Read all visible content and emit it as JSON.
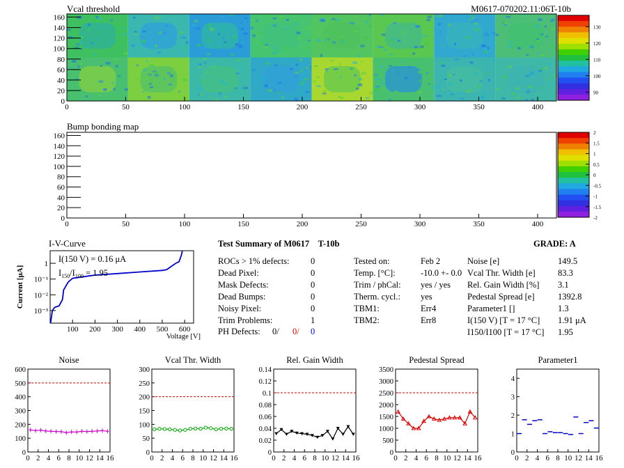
{
  "vcal_map": {
    "title": "Vcal threshold",
    "module_label": "M0617-070202.11:06T-10b",
    "x_ticks": [
      0,
      50,
      100,
      150,
      200,
      250,
      300,
      350,
      400
    ],
    "y_ticks": [
      0,
      20,
      40,
      60,
      80,
      100,
      120,
      140,
      160
    ],
    "palette_ticks": [
      90,
      100,
      110,
      120,
      130
    ]
  },
  "bump_map": {
    "title": "Bump bonding map",
    "x_ticks": [
      0,
      50,
      100,
      150,
      200,
      250,
      300,
      350,
      400
    ],
    "y_ticks": [
      0,
      20,
      40,
      60,
      80,
      100,
      120,
      140,
      160
    ],
    "palette_ticks": [
      "-2",
      "-1.5",
      "-1",
      "-0.5",
      "0",
      "0.5",
      "1",
      "1.5",
      "2"
    ]
  },
  "iv_curve": {
    "title": "I-V-Curve",
    "ylabel": "Current [μA]",
    "xlabel": "Voltage [V]",
    "note_current": "I(150 V) = 0.16 μA",
    "note_ratio": "I150/I100 = 1.95",
    "x_ticks": [
      100,
      200,
      300,
      400,
      500,
      600
    ],
    "y_ticks": [
      "1",
      "10⁻¹",
      "10⁻²",
      "10⁻³"
    ]
  },
  "summary": {
    "title": "Test Summary of M0617",
    "tag": "T-10b",
    "grade": "GRADE:  A",
    "defects": [
      {
        "label": "ROCs > 1% defects:",
        "value": "0"
      },
      {
        "label": "Dead Pixel:",
        "value": "0"
      },
      {
        "label": "Mask Defects:",
        "value": "0"
      },
      {
        "label": "Dead Bumps:",
        "value": "0"
      },
      {
        "label": "Noisy Pixel:",
        "value": "0"
      },
      {
        "label": "Trim Problems:",
        "value": "1"
      }
    ],
    "ph_label": "PH Defects:",
    "ph_values": [
      "0/",
      "0/",
      "0"
    ],
    "ph_colors": [
      "#000000",
      "#e00000",
      "#0000dd"
    ],
    "conditions": [
      {
        "label": "Tested on:",
        "value": "Feb 2"
      },
      {
        "label": "Temp. [°C]:",
        "value": "-10.0 +- 0.0"
      },
      {
        "label": "Trim / phCal:",
        "value": "yes / yes"
      },
      {
        "label": "Therm. cycl.:",
        "value": "yes"
      },
      {
        "label": "TBM1:",
        "value": "Err4"
      },
      {
        "label": "TBM2:",
        "value": "Err8"
      }
    ],
    "results": [
      {
        "label": "Noise [e]",
        "value": "149.5"
      },
      {
        "label": "Vcal Thr. Width [e]",
        "value": "83.3"
      },
      {
        "label": "Rel. Gain Width [%]",
        "value": "3.1"
      },
      {
        "label": "Pedestal Spread [e]",
        "value": "1392.8"
      },
      {
        "label": "Parameter1 []",
        "value": "1.3"
      },
      {
        "label": "I(150 V) [T = 17 °C]",
        "value": "1.91 μA"
      },
      {
        "label": "I150/I100  [T = 17 °C]",
        "value": "1.95"
      }
    ]
  },
  "chart_data": [
    {
      "type": "line",
      "title": "Noise",
      "x": [
        0,
        1,
        2,
        3,
        4,
        5,
        6,
        7,
        8,
        9,
        10,
        11,
        12,
        13,
        14,
        15
      ],
      "values": [
        160,
        155,
        158,
        152,
        150,
        148,
        147,
        140,
        145,
        144,
        150,
        148,
        150,
        152,
        155,
        150
      ],
      "threshold": 500,
      "ylim": [
        0,
        600
      ],
      "y_ticks": [
        0,
        100,
        200,
        300,
        400,
        500,
        600
      ],
      "x_ticks": [
        0,
        2,
        4,
        6,
        8,
        10,
        12,
        14,
        16
      ],
      "color": "#cc00cc",
      "marker": "plus"
    },
    {
      "type": "line",
      "title": "Vcal Thr. Width",
      "x": [
        0,
        1,
        2,
        3,
        4,
        5,
        6,
        7,
        8,
        9,
        10,
        11,
        12,
        13,
        14,
        15
      ],
      "values": [
        82,
        84,
        83,
        82,
        80,
        78,
        80,
        84,
        85,
        84,
        88,
        86,
        82,
        84,
        85,
        84
      ],
      "threshold": 200,
      "ylim": [
        0,
        300
      ],
      "y_ticks": [
        0,
        50,
        100,
        150,
        200,
        250,
        300
      ],
      "x_ticks": [
        0,
        2,
        4,
        6,
        8,
        10,
        12,
        14,
        16
      ],
      "color": "#00aa00",
      "marker": "circle"
    },
    {
      "type": "line",
      "title": "Rel. Gain Width",
      "x": [
        0,
        1,
        2,
        3,
        4,
        5,
        6,
        7,
        8,
        9,
        10,
        11,
        12,
        13,
        14,
        15
      ],
      "values": [
        0.031,
        0.038,
        0.03,
        0.035,
        0.032,
        0.031,
        0.03,
        0.028,
        0.025,
        0.028,
        0.035,
        0.022,
        0.04,
        0.03,
        0.043,
        0.03
      ],
      "threshold": 0.1,
      "ylim": [
        0,
        0.14
      ],
      "y_ticks": [
        "0",
        "0.02",
        "0.04",
        "0.06",
        "0.08",
        "0.1",
        "0.12",
        "0.14"
      ],
      "x_ticks": [
        0,
        2,
        4,
        6,
        8,
        10,
        12,
        14,
        16
      ],
      "color": "#000000",
      "marker": "triangle-down"
    },
    {
      "type": "line",
      "title": "Pedestal Spread",
      "x": [
        0,
        1,
        2,
        3,
        4,
        5,
        6,
        7,
        8,
        9,
        10,
        11,
        12,
        13,
        14,
        15
      ],
      "values": [
        1700,
        1400,
        1200,
        1000,
        1000,
        1300,
        1500,
        1400,
        1350,
        1400,
        1450,
        1450,
        1450,
        1200,
        1700,
        1450
      ],
      "threshold": 2500,
      "ylim": [
        0,
        3500
      ],
      "y_ticks": [
        0,
        500,
        1000,
        1500,
        2000,
        2500,
        3000,
        3500
      ],
      "x_ticks": [
        0,
        2,
        4,
        6,
        8,
        10,
        12,
        14,
        16
      ],
      "color": "#dd0000",
      "marker": "triangle-up"
    },
    {
      "type": "scatter",
      "title": "Parameter1",
      "x": [
        0,
        1,
        2,
        3,
        4,
        5,
        6,
        7,
        8,
        9,
        10,
        11,
        12,
        13,
        14,
        15
      ],
      "values": [
        1.0,
        1.75,
        1.5,
        1.7,
        1.75,
        1.0,
        1.1,
        1.05,
        1.05,
        1.0,
        0.95,
        1.9,
        1.0,
        1.6,
        1.7,
        1.3
      ],
      "ylim": [
        0,
        4.5
      ],
      "y_ticks": [
        0,
        1,
        2,
        3,
        4
      ],
      "x_ticks": [
        0,
        2,
        4,
        6,
        8,
        10,
        12,
        14,
        16
      ],
      "color": "#0000cc",
      "marker": "dash"
    }
  ]
}
